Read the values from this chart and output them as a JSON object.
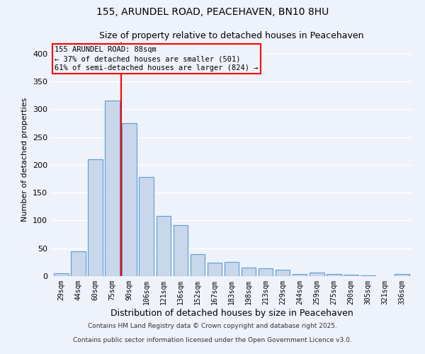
{
  "title1": "155, ARUNDEL ROAD, PEACEHAVEN, BN10 8HU",
  "title2": "Size of property relative to detached houses in Peacehaven",
  "xlabel": "Distribution of detached houses by size in Peacehaven",
  "ylabel": "Number of detached properties",
  "categories": [
    "29sqm",
    "44sqm",
    "60sqm",
    "75sqm",
    "90sqm",
    "106sqm",
    "121sqm",
    "136sqm",
    "152sqm",
    "167sqm",
    "183sqm",
    "198sqm",
    "213sqm",
    "229sqm",
    "244sqm",
    "259sqm",
    "275sqm",
    "290sqm",
    "305sqm",
    "321sqm",
    "336sqm"
  ],
  "values": [
    5,
    44,
    210,
    315,
    275,
    178,
    108,
    92,
    40,
    24,
    25,
    15,
    14,
    11,
    4,
    6,
    4,
    3,
    1,
    0,
    4
  ],
  "bar_color": "#c8d8ea",
  "bar_edge_color": "#5b9bd5",
  "annotation_title": "155 ARUNDEL ROAD: 88sqm",
  "annotation_line1": "← 37% of detached houses are smaller (501)",
  "annotation_line2": "61% of semi-detached houses are larger (824) →",
  "ylim": [
    0,
    420
  ],
  "yticks": [
    0,
    50,
    100,
    150,
    200,
    250,
    300,
    350,
    400
  ],
  "background_color": "#eef2fb",
  "grid_color": "#ffffff",
  "footer1": "Contains HM Land Registry data © Crown copyright and database right 2025.",
  "footer2": "Contains public sector information licensed under the Open Government Licence v3.0."
}
